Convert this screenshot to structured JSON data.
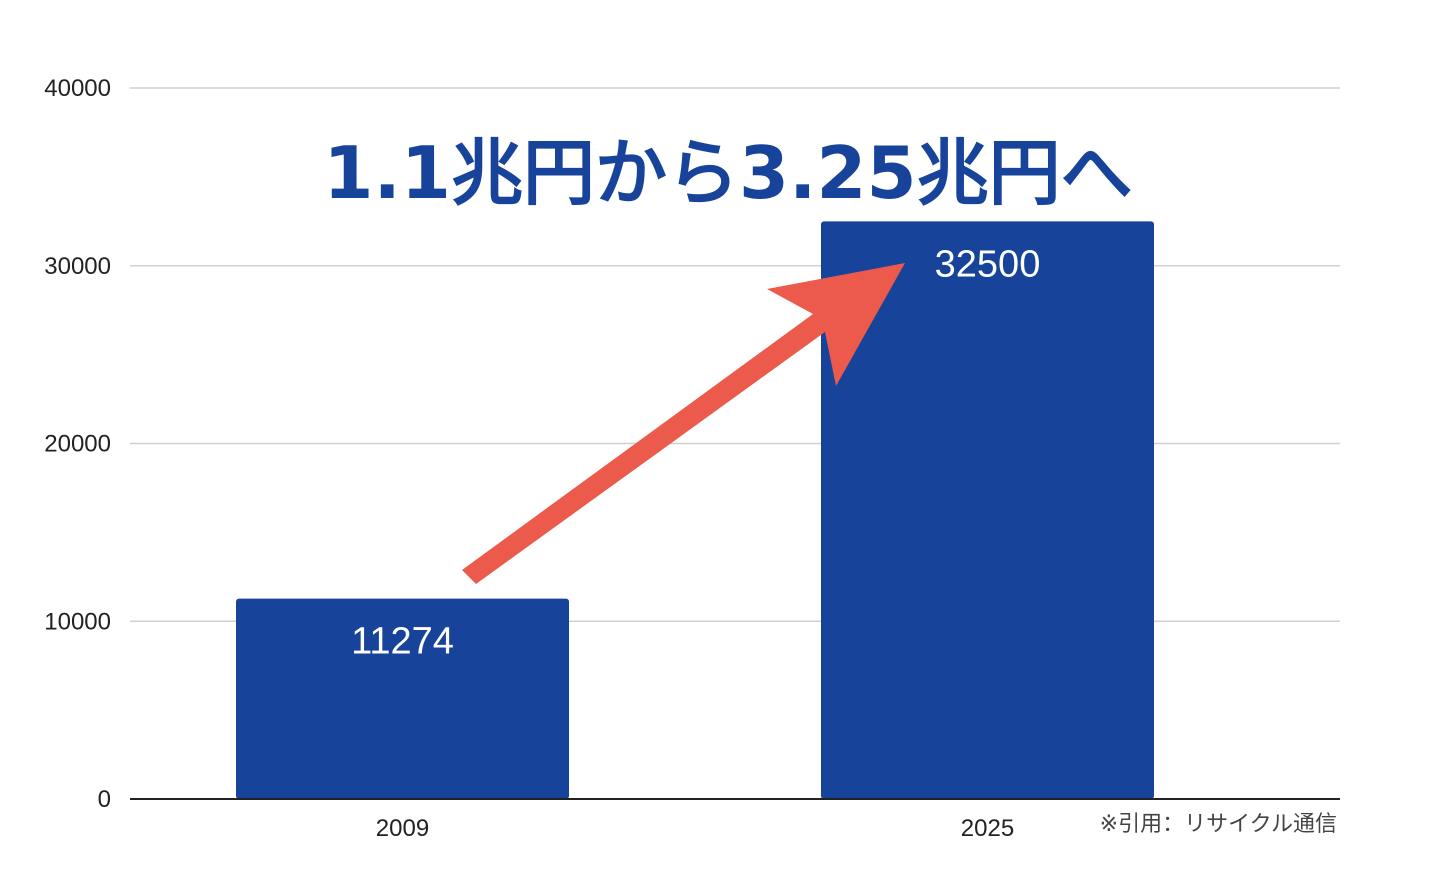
{
  "chart_data": {
    "type": "bar",
    "categories": [
      "2009",
      "2025"
    ],
    "values": [
      11274,
      32500
    ],
    "data_labels": [
      "11274",
      "32500"
    ],
    "ylim": [
      0,
      40000
    ],
    "yticks": [
      0,
      10000,
      20000,
      30000,
      40000
    ],
    "ytick_labels": [
      "0",
      "10000",
      "20000",
      "30000",
      "40000"
    ],
    "grid": true,
    "legend": "none",
    "annotation": "1.1兆円から3.25兆円へ",
    "source_note": "※引用：リサイクル通信"
  },
  "colors": {
    "bar": "#17449A",
    "headline": "#17449A",
    "arrow": "#EB5A4B",
    "grid": "#d0d0d0",
    "axis": "#222222"
  }
}
